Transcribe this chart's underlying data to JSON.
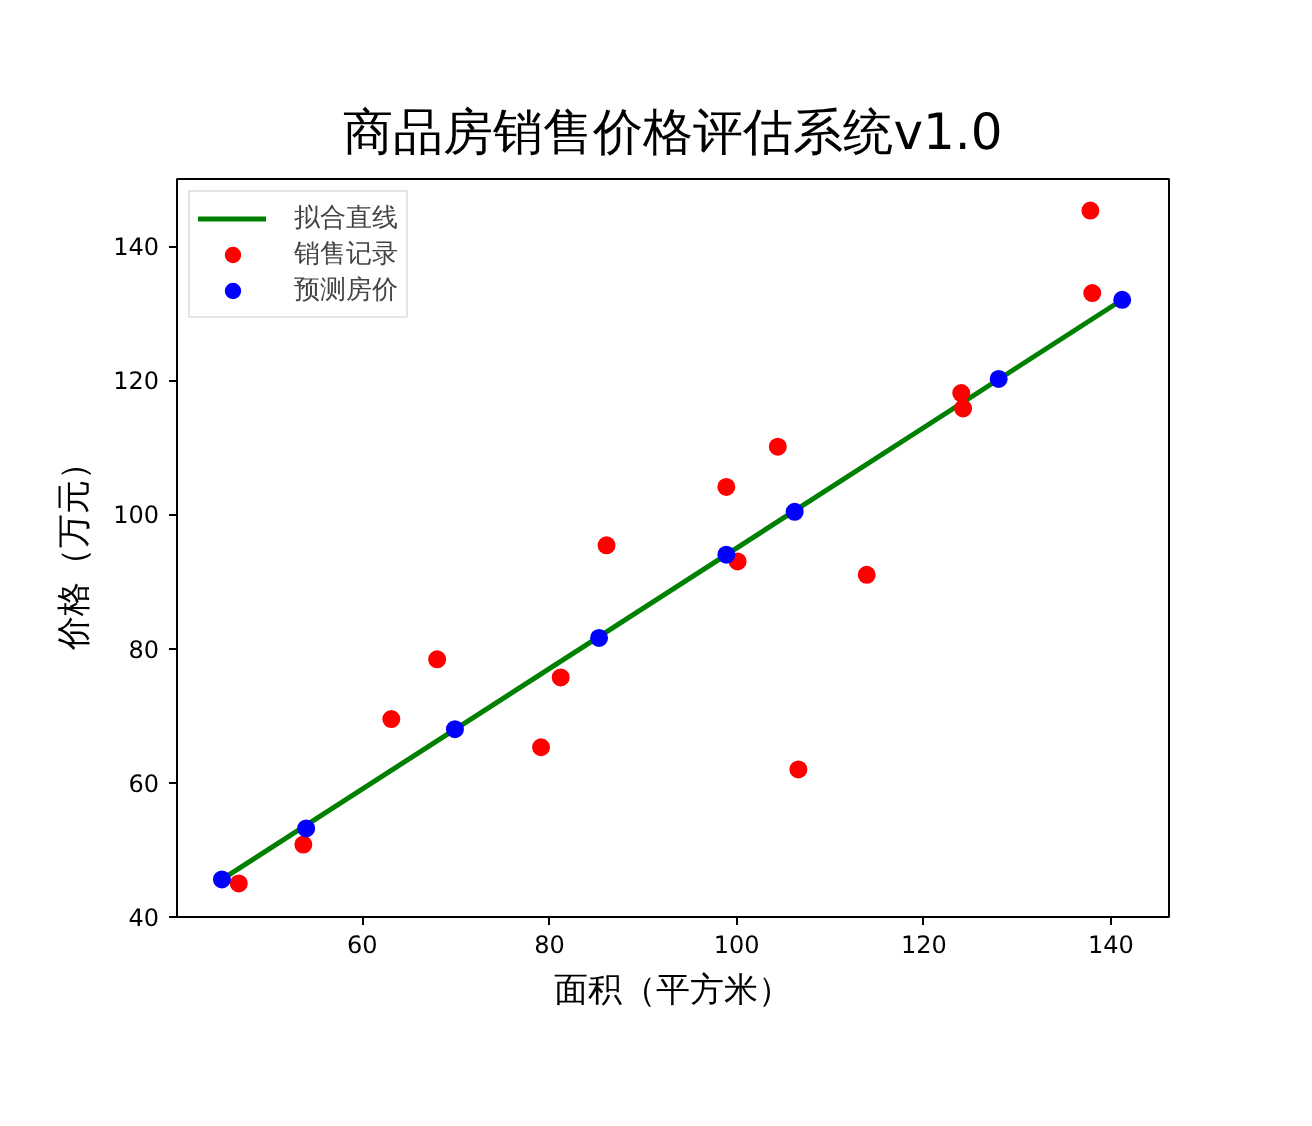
{
  "chart_data": {
    "type": "scatter",
    "title": "商品房销售价格评估系统v1.0",
    "xlabel": "面积（平方米）",
    "ylabel": "价格（万元）",
    "xlim": [
      40.2,
      146.2
    ],
    "ylim": [
      40,
      150
    ],
    "xticks": [
      60,
      80,
      100,
      120,
      140
    ],
    "yticks": [
      40,
      60,
      80,
      100,
      120,
      140
    ],
    "legend": "top left",
    "marker": "circle",
    "series": [
      {
        "name": "拟合直线",
        "type": "line",
        "marker": "none",
        "color": "#008000",
        "x": [
          45.0,
          141.2
        ],
        "values": [
          45.6,
          132.0
        ]
      },
      {
        "name": "销售记录",
        "color": "#ff0000",
        "x": [
          46.8,
          53.7,
          63.1,
          68.0,
          79.1,
          81.2,
          86.1,
          98.9,
          104.4,
          100.1,
          113.9,
          106.6,
          124.0,
          124.2,
          137.8,
          138.0
        ],
        "values": [
          45.0,
          50.8,
          69.5,
          78.4,
          65.3,
          75.7,
          95.4,
          104.1,
          110.1,
          93.0,
          91.0,
          62.0,
          118.1,
          115.8,
          145.3,
          133.0
        ]
      },
      {
        "name": "预测房价",
        "color": "#0000ff",
        "x": [
          45.0,
          54.0,
          69.9,
          85.3,
          98.9,
          106.2,
          128.0,
          141.2
        ],
        "values": [
          45.6,
          53.2,
          68.0,
          81.6,
          94.0,
          100.4,
          120.2,
          132.0
        ]
      }
    ]
  }
}
